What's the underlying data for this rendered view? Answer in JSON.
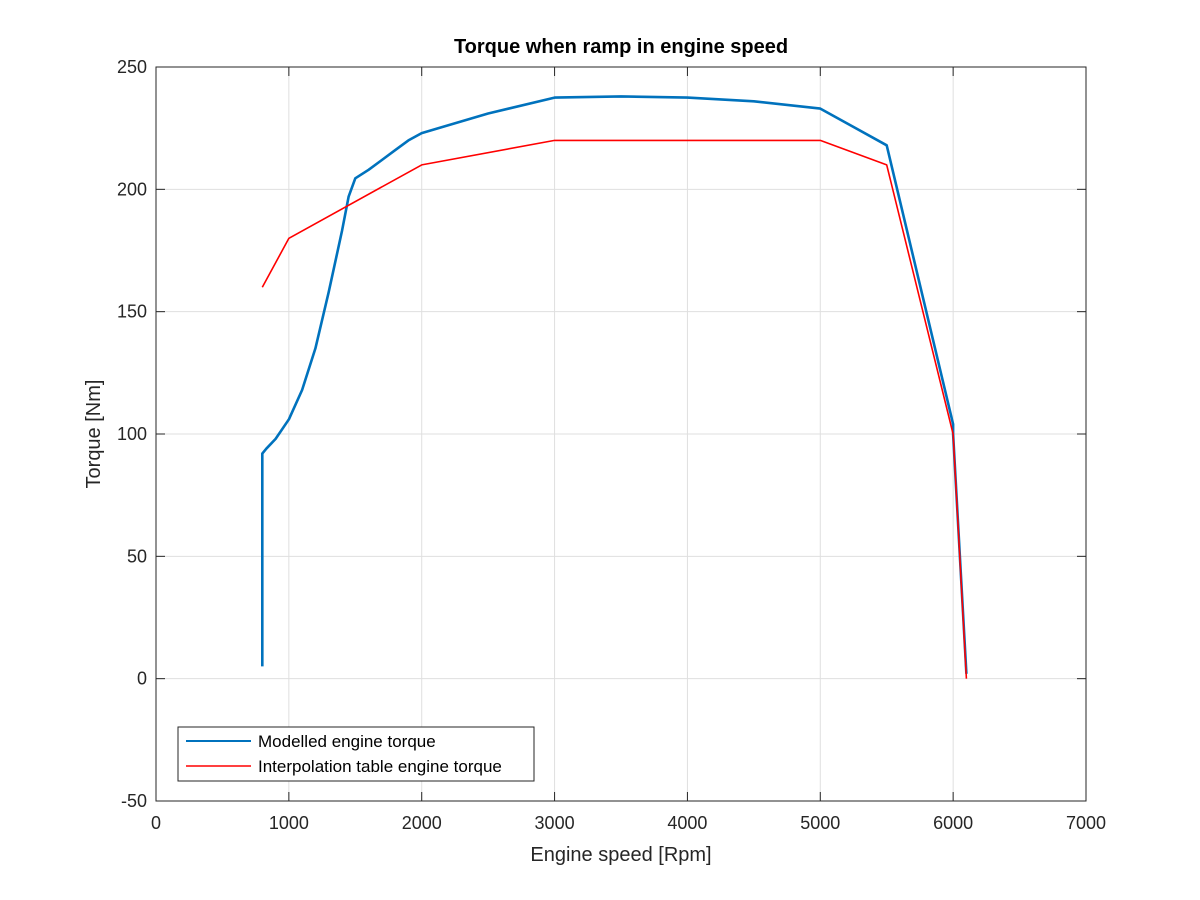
{
  "chart_data": {
    "type": "line",
    "title": "Torque when ramp in engine speed",
    "xlabel": "Engine speed [Rpm]",
    "ylabel": "Torque [Nm]",
    "xlim": [
      0,
      7000
    ],
    "ylim": [
      -50,
      250
    ],
    "x_ticks": [
      0,
      1000,
      2000,
      3000,
      4000,
      5000,
      6000,
      7000
    ],
    "y_ticks": [
      -50,
      0,
      50,
      100,
      150,
      200,
      250
    ],
    "x_tick_labels": [
      "0",
      "1000",
      "2000",
      "3000",
      "4000",
      "5000",
      "6000",
      "7000"
    ],
    "y_tick_labels": [
      "-50",
      "0",
      "50",
      "100",
      "150",
      "200",
      "250"
    ],
    "grid": true,
    "legend_position": "bottom-left",
    "series": [
      {
        "name": "Modelled engine torque",
        "color": "#0072BD",
        "points": [
          [
            800,
            5
          ],
          [
            800,
            60
          ],
          [
            800,
            92
          ],
          [
            830,
            94
          ],
          [
            900,
            98
          ],
          [
            1000,
            106
          ],
          [
            1100,
            118
          ],
          [
            1200,
            135
          ],
          [
            1300,
            158
          ],
          [
            1400,
            183
          ],
          [
            1450,
            197
          ],
          [
            1500,
            204.5
          ],
          [
            1600,
            208
          ],
          [
            1700,
            212
          ],
          [
            1800,
            216
          ],
          [
            1900,
            220
          ],
          [
            2000,
            223
          ],
          [
            2500,
            231
          ],
          [
            3000,
            237.5
          ],
          [
            3500,
            238
          ],
          [
            4000,
            237.5
          ],
          [
            4500,
            236
          ],
          [
            5000,
            233
          ],
          [
            5500,
            218
          ],
          [
            6000,
            104
          ],
          [
            6000,
            100
          ],
          [
            6100,
            2
          ]
        ]
      },
      {
        "name": "Interpolation table engine torque",
        "color": "#FF0000",
        "points": [
          [
            800,
            160
          ],
          [
            1000,
            180
          ],
          [
            2000,
            210
          ],
          [
            3000,
            220
          ],
          [
            5000,
            220
          ],
          [
            5500,
            210
          ],
          [
            6000,
            100
          ],
          [
            6100,
            0
          ]
        ]
      }
    ]
  }
}
